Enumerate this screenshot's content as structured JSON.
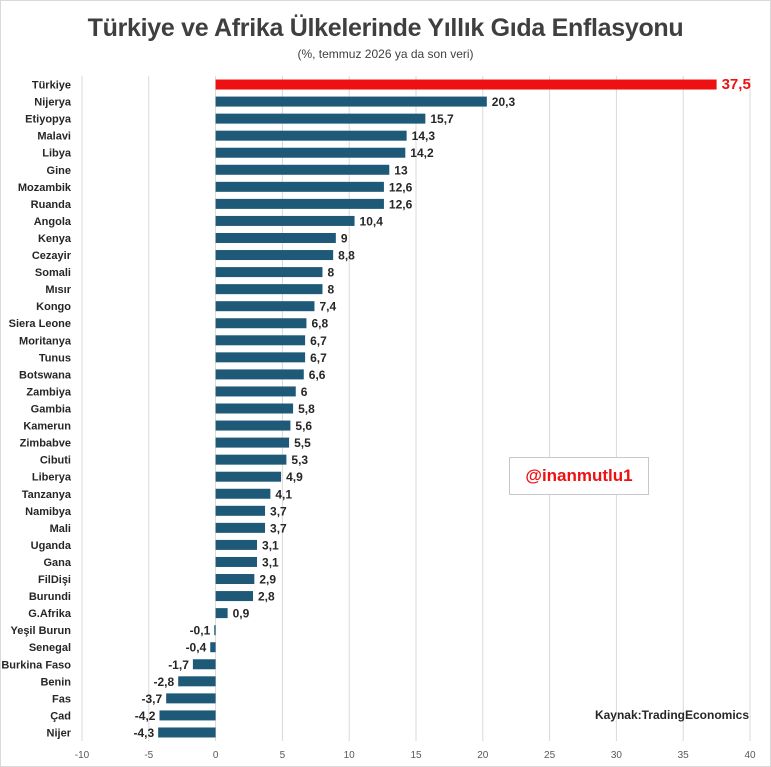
{
  "chart_data": {
    "type": "bar",
    "orientation": "horizontal",
    "title": "Türkiye ve Afrika Ülkelerinde Yıllık Gıda Enflasyonu",
    "subtitle": "(%, temmuz 2026 ya da son veri)",
    "categories": [
      "Türkiye",
      "Nijerya",
      "Etiyopya",
      "Malavi",
      "Libya",
      "Gine",
      "Mozambik",
      "Ruanda",
      "Angola",
      "Kenya",
      "Cezayir",
      "Somali",
      "Mısır",
      "Kongo",
      "Siera Leone",
      "Moritanya",
      "Tunus",
      "Botswana",
      "Zambiya",
      "Gambia",
      "Kamerun",
      "Zimbabve",
      "Cibuti",
      "Liberya",
      "Tanzanya",
      "Namibya",
      "Mali",
      "Uganda",
      "Gana",
      "FilDişi",
      "Burundi",
      "G.Afrika",
      "Yeşil Burun",
      "Senegal",
      "Burkina Faso",
      "Benin",
      "Fas",
      "Çad",
      "Nijer"
    ],
    "values": [
      37.5,
      20.3,
      15.7,
      14.3,
      14.2,
      13,
      12.6,
      12.6,
      10.4,
      9,
      8.8,
      8,
      8,
      7.4,
      6.8,
      6.7,
      6.7,
      6.6,
      6,
      5.8,
      5.6,
      5.5,
      5.3,
      4.9,
      4.1,
      3.7,
      3.7,
      3.1,
      3.1,
      2.9,
      2.8,
      0.9,
      -0.1,
      -0.4,
      -1.7,
      -2.8,
      -3.7,
      -4.2,
      -4.3
    ],
    "value_labels": [
      "37,5",
      "20,3",
      "15,7",
      "14,3",
      "14,2",
      "13",
      "12,6",
      "12,6",
      "10,4",
      "9",
      "8,8",
      "8",
      "8",
      "7,4",
      "6,8",
      "6,7",
      "6,7",
      "6,6",
      "6",
      "5,8",
      "5,6",
      "5,5",
      "5,3",
      "4,9",
      "4,1",
      "3,7",
      "3,7",
      "3,1",
      "3,1",
      "2,9",
      "2,8",
      "0,9",
      "-0,1",
      "-0,4",
      "-1,7",
      "-2,8",
      "-3,7",
      "-4,2",
      "-4,3"
    ],
    "xlim": [
      -10,
      40
    ],
    "x_ticks": [
      -10,
      -5,
      0,
      5,
      10,
      15,
      20,
      25,
      30,
      35,
      40
    ],
    "grid": true,
    "highlight_category": "Türkiye",
    "colors": {
      "bar": "#1e5a78",
      "highlight": "#ee1111",
      "grid": "#d9d9d9",
      "label": "#262626"
    }
  },
  "annotations": {
    "watermark": "@inanmutlu1",
    "source": "Kaynak:TradingEconomics"
  }
}
